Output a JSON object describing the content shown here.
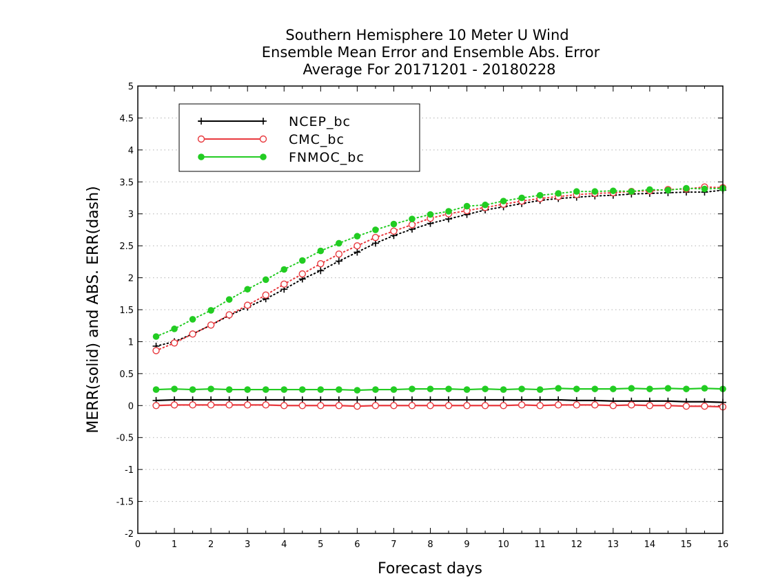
{
  "chart_data": {
    "type": "line",
    "title": [
      "Southern Hemisphere 10 Meter U Wind",
      "Ensemble Mean Error and Ensemble Abs. Error",
      "Average For 20171201 - 20180228"
    ],
    "xlabel": "Forecast days",
    "ylabel": "MERR(solid) and ABS. ERR(dash)",
    "xlim": [
      0,
      16
    ],
    "ylim": [
      -2,
      5
    ],
    "xticks": [
      "0",
      "1",
      "2",
      "3",
      "4",
      "5",
      "6",
      "7",
      "8",
      "9",
      "10",
      "11",
      "12",
      "13",
      "14",
      "15",
      "16"
    ],
    "yticks": [
      "5",
      "4.5",
      "4",
      "3.5",
      "3",
      "2.5",
      "2",
      "1.5",
      "1",
      "0.5",
      "0",
      "-0.5",
      "-1",
      "-1.5",
      "-2"
    ],
    "grid": "horizontal-dotted",
    "legend_position": "top-left",
    "x": [
      0.5,
      1,
      1.5,
      2,
      2.5,
      3,
      3.5,
      4,
      4.5,
      5,
      5.5,
      6,
      6.5,
      7,
      7.5,
      8,
      8.5,
      9,
      9.5,
      10,
      10.5,
      11,
      11.5,
      12,
      12.5,
      13,
      13.5,
      14,
      14.5,
      15,
      15.5,
      16
    ],
    "series": [
      {
        "name": "NCEP_bc",
        "color": "#000000",
        "marker": "plus",
        "style": "solid",
        "values": [
          0.08,
          0.09,
          0.09,
          0.09,
          0.09,
          0.09,
          0.09,
          0.09,
          0.09,
          0.09,
          0.09,
          0.09,
          0.09,
          0.09,
          0.09,
          0.09,
          0.09,
          0.09,
          0.09,
          0.09,
          0.09,
          0.09,
          0.09,
          0.08,
          0.08,
          0.07,
          0.07,
          0.07,
          0.07,
          0.06,
          0.06,
          0.05
        ]
      },
      {
        "name": "CMC_bc",
        "color": "#e8383d",
        "marker": "open-circle",
        "style": "solid",
        "values": [
          0.0,
          0.01,
          0.01,
          0.01,
          0.01,
          0.01,
          0.01,
          0.0,
          0.0,
          0.0,
          0.0,
          -0.01,
          0.0,
          0.0,
          0.0,
          0.0,
          0.0,
          0.0,
          0.0,
          0.0,
          0.01,
          0.0,
          0.01,
          0.01,
          0.01,
          0.0,
          0.01,
          0.0,
          0.0,
          -0.01,
          -0.01,
          -0.02
        ]
      },
      {
        "name": "FNMOC_bc",
        "color": "#22cc22",
        "marker": "filled-circle",
        "style": "solid",
        "values": [
          0.25,
          0.26,
          0.25,
          0.26,
          0.25,
          0.25,
          0.25,
          0.25,
          0.25,
          0.25,
          0.25,
          0.24,
          0.25,
          0.25,
          0.26,
          0.26,
          0.26,
          0.25,
          0.26,
          0.25,
          0.26,
          0.25,
          0.27,
          0.26,
          0.26,
          0.26,
          0.27,
          0.26,
          0.27,
          0.26,
          0.27,
          0.26
        ]
      },
      {
        "name": "NCEP_bc",
        "color": "#000000",
        "marker": "plus",
        "style": "dotted",
        "values": [
          0.93,
          1.0,
          1.12,
          1.26,
          1.41,
          1.54,
          1.67,
          1.82,
          1.98,
          2.11,
          2.26,
          2.4,
          2.54,
          2.66,
          2.76,
          2.85,
          2.92,
          2.99,
          3.06,
          3.11,
          3.16,
          3.21,
          3.24,
          3.26,
          3.28,
          3.29,
          3.31,
          3.32,
          3.33,
          3.34,
          3.34,
          3.37
        ]
      },
      {
        "name": "CMC_bc",
        "color": "#e8383d",
        "marker": "open-circle",
        "style": "dotted",
        "values": [
          0.86,
          0.98,
          1.12,
          1.26,
          1.42,
          1.57,
          1.73,
          1.9,
          2.06,
          2.22,
          2.37,
          2.5,
          2.63,
          2.73,
          2.83,
          2.93,
          3.0,
          3.05,
          3.1,
          3.15,
          3.2,
          3.24,
          3.27,
          3.3,
          3.32,
          3.33,
          3.35,
          3.36,
          3.38,
          3.39,
          3.42,
          3.41
        ]
      },
      {
        "name": "FNMOC_bc",
        "color": "#22cc22",
        "marker": "filled-circle",
        "style": "dotted",
        "values": [
          1.08,
          1.2,
          1.35,
          1.49,
          1.66,
          1.82,
          1.97,
          2.13,
          2.27,
          2.42,
          2.54,
          2.65,
          2.75,
          2.84,
          2.92,
          2.99,
          3.04,
          3.12,
          3.14,
          3.2,
          3.25,
          3.29,
          3.32,
          3.35,
          3.35,
          3.36,
          3.35,
          3.38,
          3.37,
          3.4,
          3.39,
          3.4
        ]
      }
    ]
  }
}
